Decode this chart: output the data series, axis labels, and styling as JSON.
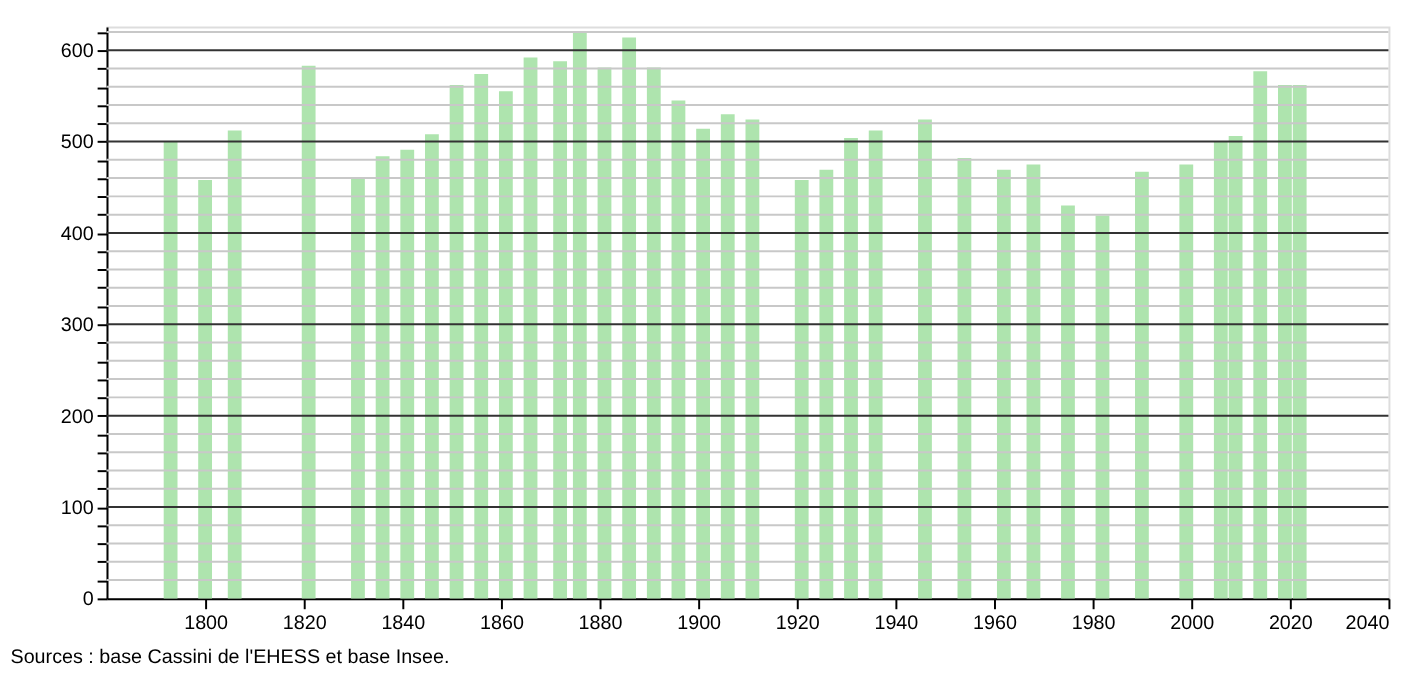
{
  "chart_data": {
    "type": "bar",
    "x": [
      1793,
      1800,
      1806,
      1821,
      1831,
      1836,
      1841,
      1846,
      1851,
      1856,
      1861,
      1866,
      1872,
      1876,
      1881,
      1886,
      1891,
      1896,
      1901,
      1906,
      1911,
      1921,
      1926,
      1931,
      1936,
      1946,
      1954,
      1962,
      1968,
      1975,
      1982,
      1990,
      1999,
      2006,
      2009,
      2014,
      2019,
      2022
    ],
    "values": [
      500,
      458,
      512,
      583,
      460,
      484,
      491,
      508,
      562,
      574,
      555,
      592,
      588,
      620,
      581,
      614,
      581,
      545,
      514,
      530,
      524,
      458,
      469,
      504,
      512,
      524,
      482,
      469,
      475,
      430,
      419,
      467,
      475,
      500,
      506,
      577,
      562,
      562
    ],
    "color": "#aee4ae",
    "xlim": [
      1780,
      2040
    ],
    "xticks": [
      1800,
      1820,
      1840,
      1860,
      1880,
      1900,
      1920,
      1940,
      1960,
      1980,
      2000,
      2020,
      2040
    ],
    "ylim": [
      0,
      626
    ],
    "yticks": [
      0,
      {
        "value": 20,
        "label": null
      },
      {
        "value": 40,
        "label": null
      },
      {
        "value": 60,
        "label": null
      },
      {
        "value": 80,
        "label": null
      },
      100,
      {
        "value": 120,
        "label": null
      },
      {
        "value": 140,
        "label": null
      },
      {
        "value": 160,
        "label": null
      },
      {
        "value": 180,
        "label": null
      },
      200,
      {
        "value": 220,
        "label": null
      },
      {
        "value": 240,
        "label": null
      },
      {
        "value": 260,
        "label": null
      },
      {
        "value": 280,
        "label": null
      },
      300,
      {
        "value": 320,
        "label": null
      },
      {
        "value": 340,
        "label": null
      },
      {
        "value": 360,
        "label": null
      },
      {
        "value": 380,
        "label": null
      },
      400,
      {
        "value": 420,
        "label": null
      },
      {
        "value": 440,
        "label": null
      },
      {
        "value": 460,
        "label": null
      },
      {
        "value": 480,
        "label": null
      },
      500,
      {
        "value": 520,
        "label": null
      },
      {
        "value": 540,
        "label": null
      },
      {
        "value": 560,
        "label": null
      },
      {
        "value": 580,
        "label": null
      },
      600,
      {
        "value": 620,
        "label": null
      }
    ],
    "grid": true,
    "annotations": [
      "Sources : base Cassini de l'EHESS et base Insee."
    ]
  }
}
